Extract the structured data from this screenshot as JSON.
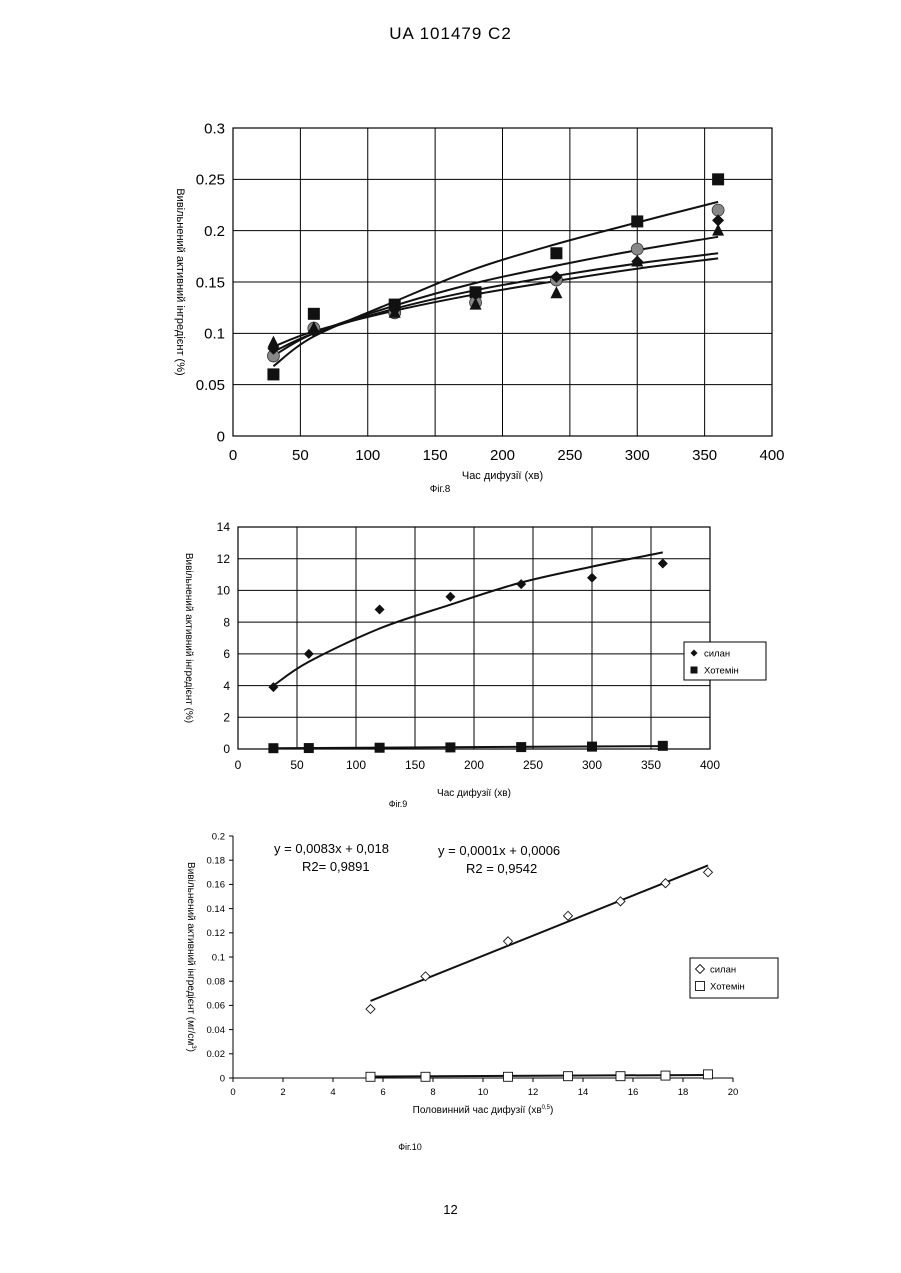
{
  "page": {
    "header": "UA   101479   C2",
    "page_number": "12"
  },
  "chart_data": [
    {
      "id": "fig8",
      "type": "scatter",
      "caption": "Фіг.8",
      "xlabel": "Час дифузії (хв)",
      "ylabel": "Вивільнений активний інгредієнт (%)",
      "xlim": [
        0,
        400
      ],
      "ylim": [
        0,
        0.3
      ],
      "xticks": [
        0,
        50,
        100,
        150,
        200,
        250,
        300,
        350,
        400
      ],
      "yticks": [
        0,
        0.05,
        0.1,
        0.15,
        0.2,
        0.25,
        0.3
      ],
      "grid": true,
      "legend": "none",
      "series": [
        {
          "marker": "square",
          "color": "#111111",
          "x": [
            30,
            60,
            120,
            180,
            240,
            300,
            360
          ],
          "y": [
            0.06,
            0.119,
            0.128,
            0.14,
            0.178,
            0.209,
            0.25
          ]
        },
        {
          "marker": "circle",
          "color": "#888888",
          "x": [
            30,
            60,
            120,
            180,
            240,
            300,
            360
          ],
          "y": [
            0.078,
            0.105,
            0.12,
            0.13,
            0.152,
            0.182,
            0.22
          ]
        },
        {
          "marker": "triangle",
          "color": "#111111",
          "x": [
            30,
            60,
            120,
            180,
            240,
            300,
            360
          ],
          "y": [
            0.091,
            0.105,
            0.12,
            0.128,
            0.139,
            0.17,
            0.2
          ]
        },
        {
          "marker": "diamond",
          "color": "#111111",
          "x": [
            30,
            60,
            120,
            180,
            240,
            300,
            360
          ],
          "y": [
            0.085,
            0.102,
            0.123,
            0.138,
            0.155,
            0.17,
            0.21
          ]
        }
      ],
      "trendlines": [
        {
          "x": [
            30,
            60,
            120,
            180,
            240,
            300,
            360
          ],
          "y": [
            0.068,
            0.097,
            0.131,
            0.163,
            0.187,
            0.208,
            0.228
          ]
        },
        {
          "x": [
            30,
            60,
            120,
            180,
            240,
            300,
            360
          ],
          "y": [
            0.078,
            0.1,
            0.127,
            0.149,
            0.166,
            0.181,
            0.194
          ]
        },
        {
          "x": [
            30,
            60,
            120,
            180,
            240,
            300,
            360
          ],
          "y": [
            0.082,
            0.1,
            0.124,
            0.142,
            0.156,
            0.168,
            0.178
          ]
        },
        {
          "x": [
            30,
            60,
            120,
            180,
            240,
            300,
            360
          ],
          "y": [
            0.087,
            0.102,
            0.122,
            0.138,
            0.151,
            0.163,
            0.173
          ]
        }
      ]
    },
    {
      "id": "fig9",
      "type": "scatter",
      "caption": "Фіг.9",
      "xlabel": "Час дифузії (хв)",
      "ylabel": "Вивільнений активний інгредієнт (%)",
      "xlim": [
        0,
        400
      ],
      "ylim": [
        0,
        14
      ],
      "xticks": [
        0,
        50,
        100,
        150,
        200,
        250,
        300,
        350,
        400
      ],
      "yticks": [
        0,
        2,
        4,
        6,
        8,
        10,
        12,
        14
      ],
      "grid": true,
      "legend": "right",
      "series": [
        {
          "name": "силан",
          "marker": "diamond",
          "color": "#111111",
          "x": [
            30,
            60,
            120,
            180,
            240,
            300,
            360
          ],
          "y": [
            3.9,
            6.0,
            8.8,
            9.6,
            10.4,
            10.8,
            11.7
          ]
        },
        {
          "name": "Хотемін",
          "marker": "square",
          "color": "#111111",
          "x": [
            30,
            60,
            120,
            180,
            240,
            300,
            360
          ],
          "y": [
            0.05,
            0.06,
            0.08,
            0.1,
            0.12,
            0.15,
            0.2
          ]
        }
      ],
      "trendlines": [
        {
          "x": [
            30,
            60,
            120,
            180,
            240,
            300,
            360
          ],
          "y": [
            4.0,
            5.5,
            7.6,
            9.1,
            10.5,
            11.5,
            12.4
          ]
        },
        {
          "x": [
            30,
            360
          ],
          "y": [
            0.05,
            0.18
          ]
        }
      ]
    },
    {
      "id": "fig10",
      "type": "scatter",
      "caption": "Фіг.10",
      "xlabel": "Половинний час дифузії (хв",
      "xlabel_sup": "0,5",
      "xlabel_end": ")",
      "ylabel": "Вивільнений активний інгредієнт (мг/см",
      "ylabel_sup": "3",
      "ylabel_end": ")",
      "xlim": [
        0,
        20
      ],
      "ylim": [
        0,
        0.2
      ],
      "xticks": [
        0,
        2,
        4,
        6,
        8,
        10,
        12,
        14,
        16,
        18,
        20
      ],
      "yticks": [
        0,
        0.02,
        0.04,
        0.06,
        0.08,
        0.1,
        0.12,
        0.14,
        0.16,
        0.18,
        0.2
      ],
      "grid": false,
      "legend": "right",
      "annotations": [
        {
          "line1": "y = 0,0083x + 0,018",
          "line2": "R2= 0,9891"
        },
        {
          "line1": "y = 0,0001x + 0,0006",
          "line2": "R2 = 0,9542"
        }
      ],
      "series": [
        {
          "name": "силан",
          "marker": "open-diamond",
          "color": "#111111",
          "x": [
            5.5,
            7.7,
            11.0,
            13.4,
            15.5,
            17.3,
            19.0
          ],
          "y": [
            0.057,
            0.084,
            0.113,
            0.134,
            0.146,
            0.161,
            0.17
          ]
        },
        {
          "name": "Хотемін",
          "marker": "open-square",
          "color": "#111111",
          "x": [
            5.5,
            7.7,
            11.0,
            13.4,
            15.5,
            17.3,
            19.0
          ],
          "y": [
            0.001,
            0.001,
            0.001,
            0.0015,
            0.0015,
            0.002,
            0.003
          ]
        }
      ],
      "trendlines": [
        {
          "x": [
            5.5,
            19.0
          ],
          "y": [
            0.0637,
            0.1757
          ]
        },
        {
          "x": [
            5.5,
            19.0
          ],
          "y": [
            0.0012,
            0.0025
          ]
        }
      ]
    }
  ]
}
